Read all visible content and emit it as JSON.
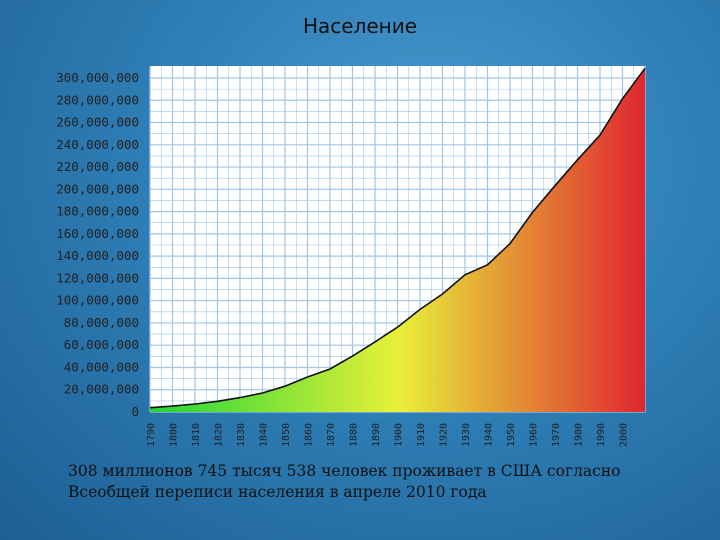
{
  "slide": {
    "title": "Население",
    "caption_line1": "308 миллионов 745 тысяч 538 человек проживает в США согласно",
    "caption_line2": "Всеобщей переписи населения в апреле 2010 года"
  },
  "chart_data": {
    "type": "area",
    "title": "Население",
    "xlabel": "",
    "ylabel": "",
    "x": [
      1790,
      1800,
      1810,
      1820,
      1830,
      1840,
      1850,
      1860,
      1870,
      1880,
      1890,
      1900,
      1910,
      1920,
      1930,
      1940,
      1950,
      1960,
      1970,
      1980,
      1990,
      2000,
      2010
    ],
    "values": [
      3900000,
      5300000,
      7200000,
      9600000,
      12900000,
      17100000,
      23200000,
      31400000,
      38600000,
      50200000,
      63000000,
      76200000,
      92200000,
      106000000,
      123200000,
      132200000,
      151300000,
      179300000,
      203300000,
      226500000,
      248700000,
      281400000,
      308700000
    ],
    "xticks": [
      "1790",
      "1800",
      "1810",
      "1820",
      "1830",
      "1840",
      "1850",
      "1860",
      "1870",
      "1880",
      "1890",
      "1900",
      "1910",
      "1920",
      "1930",
      "1940",
      "1950",
      "1960",
      "1970",
      "1980",
      "1990",
      "2000"
    ],
    "yticks": [
      "0",
      "20,000,000",
      "40,000,000",
      "60,000,000",
      "80,000,000",
      "100,000,000",
      "120,000,000",
      "140,000,000",
      "160,000,000",
      "180,000,000",
      "200,000,000",
      "220,000,000",
      "240,000,000",
      "260,000,000",
      "280,000,000",
      "300,000,000"
    ],
    "xlim": [
      1790,
      2010
    ],
    "ylim": [
      0,
      300000000
    ],
    "grid": true,
    "colors": {
      "fill_start": "#1fd635",
      "fill_mid": "#e8f03a",
      "fill_end": "#e0262f",
      "line": "#111111",
      "grid": "#9fc6e6",
      "plot_bg": "#ffffff"
    }
  }
}
